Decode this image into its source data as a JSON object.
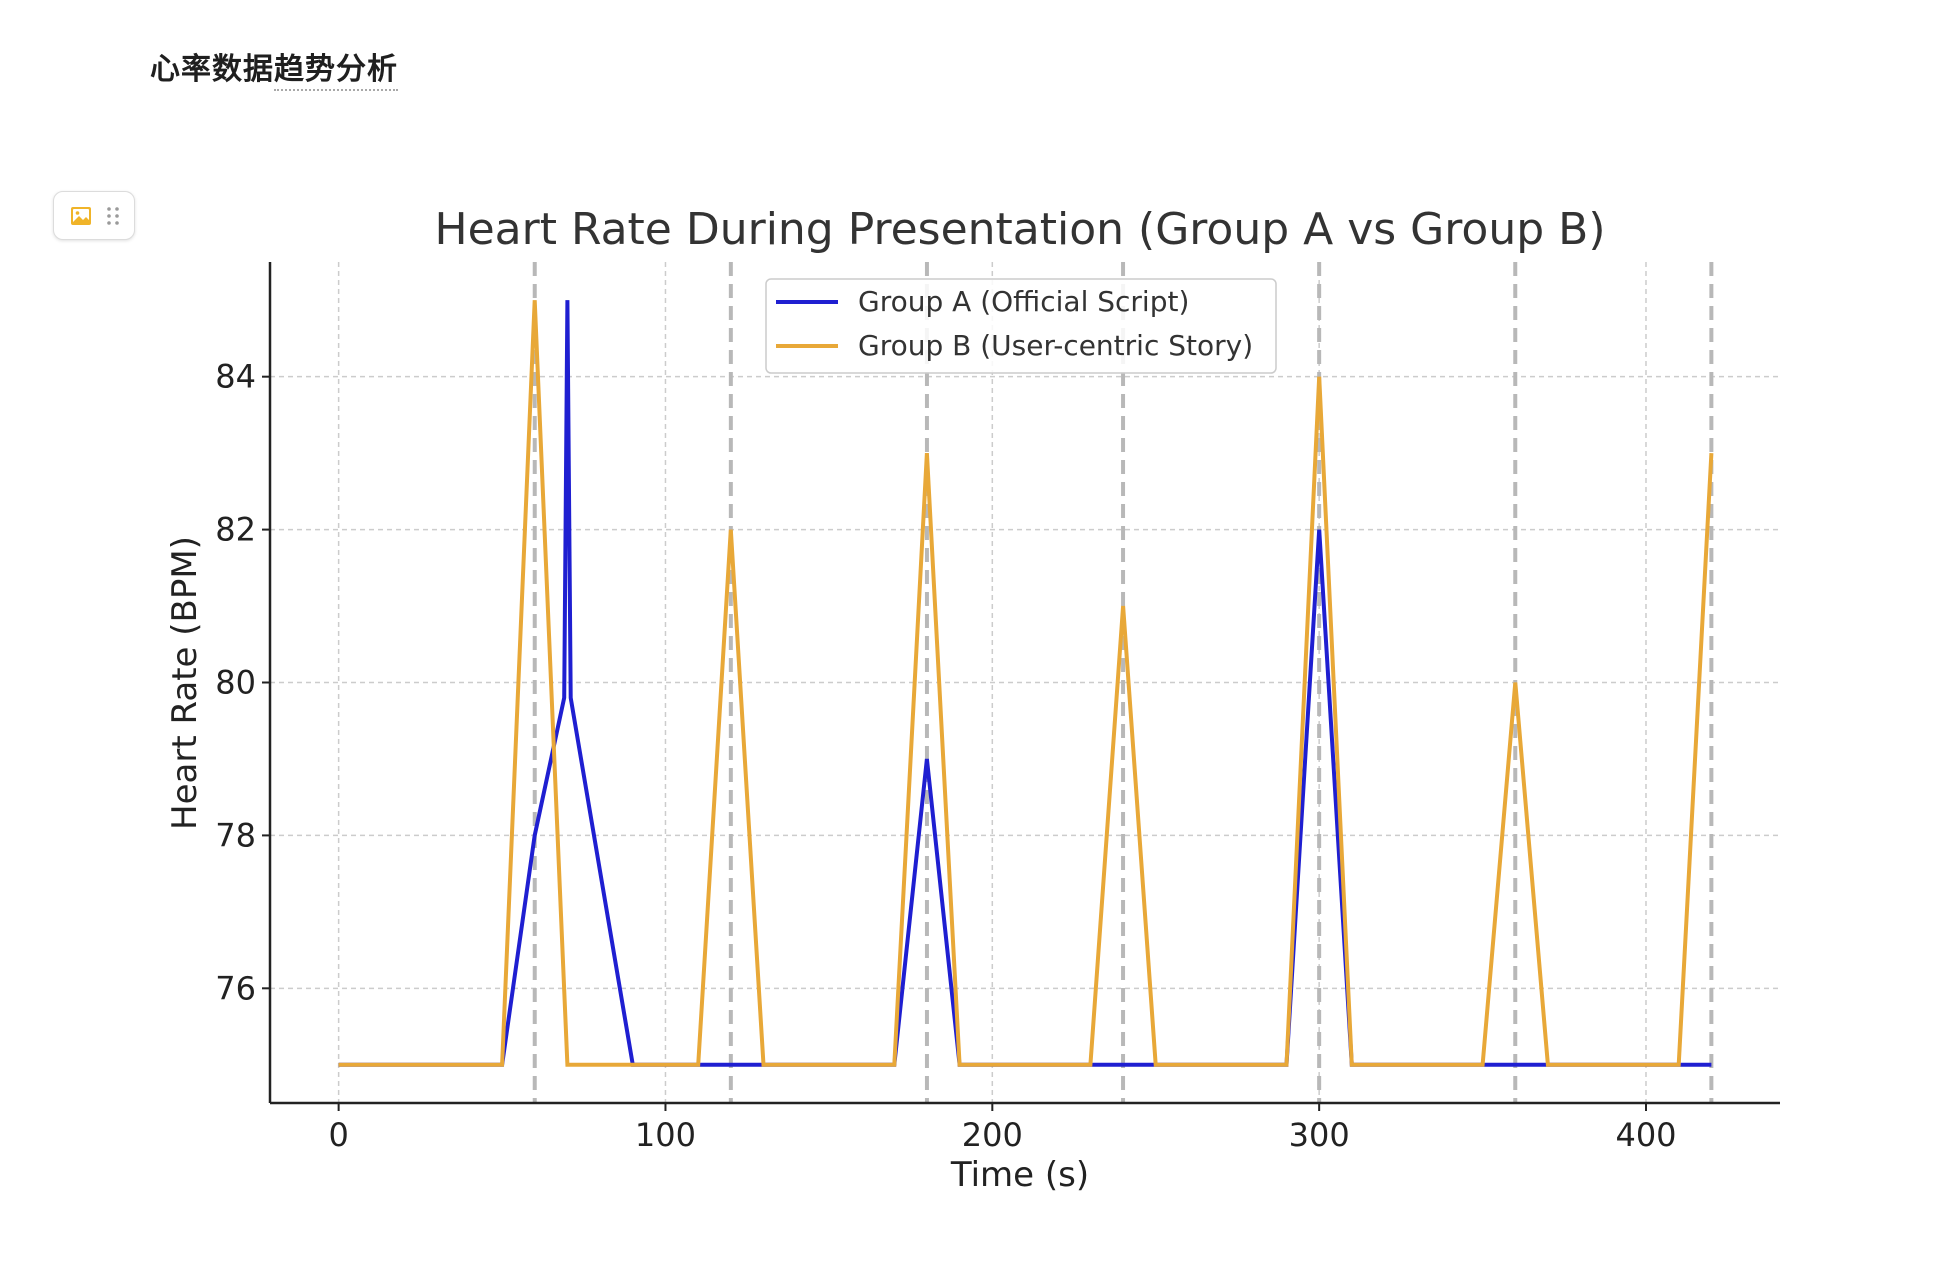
{
  "doc": {
    "title_part1": "心率数据",
    "title_part2": "趋势分析"
  },
  "block_handle": {
    "icons": [
      "image-icon",
      "drag-handle-icon"
    ],
    "accent": "#f0b429"
  },
  "chart_data": {
    "type": "line",
    "title": "Heart Rate During Presentation (Group A vs Group B)",
    "xlabel": "Time (s)",
    "ylabel": "Heart Rate (BPM)",
    "xlim": [
      -21,
      441
    ],
    "ylim": [
      74.5,
      85.5
    ],
    "xticks": [
      0,
      100,
      200,
      300,
      400
    ],
    "yticks": [
      76,
      78,
      80,
      82,
      84
    ],
    "grid": true,
    "legend_position": "top-center",
    "vlines": [
      60,
      120,
      180,
      240,
      300,
      360,
      420
    ],
    "series": [
      {
        "name": "Group A (Official Script)",
        "color": "#1f1fd1",
        "x": [
          0,
          50,
          60,
          69,
          70,
          71,
          90,
          110,
          130,
          170,
          180,
          190,
          230,
          250,
          290,
          300,
          310,
          350,
          370,
          410,
          420
        ],
        "y": [
          75,
          75,
          78,
          79.8,
          85,
          79.8,
          75,
          75,
          75,
          75,
          79,
          75,
          75,
          75,
          75,
          82,
          75,
          75,
          75,
          75,
          75
        ]
      },
      {
        "name": "Group B (User-centric Story)",
        "color": "#e8a838",
        "x": [
          0,
          50,
          60,
          70,
          110,
          120,
          130,
          170,
          180,
          190,
          230,
          240,
          250,
          290,
          300,
          310,
          350,
          360,
          370,
          410,
          420
        ],
        "y": [
          75,
          75,
          85,
          75,
          75,
          82,
          75,
          75,
          83,
          75,
          75,
          81,
          75,
          75,
          84,
          75,
          75,
          80,
          75,
          75,
          83
        ]
      }
    ]
  }
}
